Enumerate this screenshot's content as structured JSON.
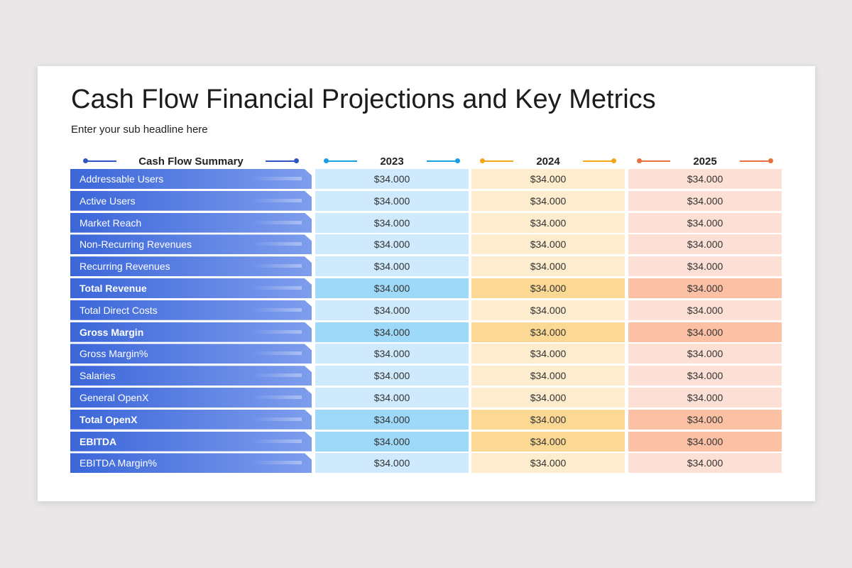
{
  "title": "Cash Flow Financial Projections and Key Metrics",
  "subtitle": "Enter your sub headline here",
  "table": {
    "header": "Cash Flow Summary",
    "columns": [
      {
        "label": "2023",
        "accent": "#1a9fe0",
        "light": "#cfeafc",
        "dark": "#9fd9f9"
      },
      {
        "label": "2024",
        "accent": "#f2a516",
        "light": "#fdeccd",
        "dark": "#fcd895"
      },
      {
        "label": "2025",
        "accent": "#e8703e",
        "light": "#fde0d5",
        "dark": "#fcc1a5"
      }
    ],
    "header_accent": "#2c56c4",
    "rows": [
      {
        "label": "Addressable  Users",
        "bold": false,
        "values": [
          "$34.000",
          "$34.000",
          "$34.000"
        ]
      },
      {
        "label": "Active Users",
        "bold": false,
        "values": [
          "$34.000",
          "$34.000",
          "$34.000"
        ]
      },
      {
        "label": "Market Reach",
        "bold": false,
        "values": [
          "$34.000",
          "$34.000",
          "$34.000"
        ]
      },
      {
        "label": "Non-Recurring Revenues",
        "bold": false,
        "values": [
          "$34.000",
          "$34.000",
          "$34.000"
        ]
      },
      {
        "label": "Recurring Revenues",
        "bold": false,
        "values": [
          "$34.000",
          "$34.000",
          "$34.000"
        ]
      },
      {
        "label": "Total Revenue",
        "bold": true,
        "values": [
          "$34.000",
          "$34.000",
          "$34.000"
        ]
      },
      {
        "label": "Total Direct Costs",
        "bold": false,
        "values": [
          "$34.000",
          "$34.000",
          "$34.000"
        ]
      },
      {
        "label": "Gross Margin",
        "bold": true,
        "values": [
          "$34.000",
          "$34.000",
          "$34.000"
        ]
      },
      {
        "label": "Gross Margin%",
        "bold": false,
        "values": [
          "$34.000",
          "$34.000",
          "$34.000"
        ]
      },
      {
        "label": "Salaries",
        "bold": false,
        "values": [
          "$34.000",
          "$34.000",
          "$34.000"
        ]
      },
      {
        "label": "General OpenX",
        "bold": false,
        "values": [
          "$34.000",
          "$34.000",
          "$34.000"
        ]
      },
      {
        "label": "Total OpenX",
        "bold": true,
        "values": [
          "$34.000",
          "$34.000",
          "$34.000"
        ]
      },
      {
        "label": "EBITDA",
        "bold": true,
        "values": [
          "$34.000",
          "$34.000",
          "$34.000"
        ]
      },
      {
        "label": "EBITDA Margin%",
        "bold": false,
        "values": [
          "$34.000",
          "$34.000",
          "$34.000"
        ]
      }
    ]
  }
}
